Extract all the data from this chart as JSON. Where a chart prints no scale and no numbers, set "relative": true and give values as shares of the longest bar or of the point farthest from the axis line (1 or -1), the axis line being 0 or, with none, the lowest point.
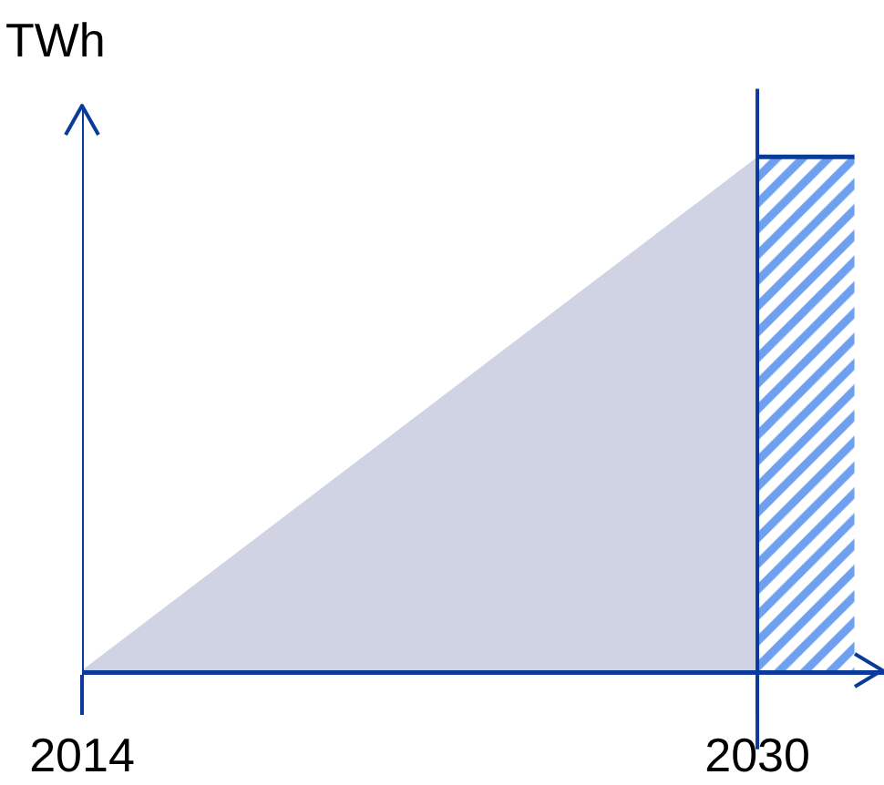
{
  "chart_data": {
    "type": "area",
    "relative": true,
    "ylabel": "TWh",
    "xlim": [
      2014,
      2033
    ],
    "xticks": [
      2014,
      2030
    ],
    "series": [
      {
        "color": "#d0d3e4",
        "x": [
          2014,
          2030
        ],
        "values": [
          0,
          1
        ]
      },
      {
        "color": "#6fa0f0",
        "x": [
          2030,
          2032.3
        ],
        "values": [
          1,
          1
        ]
      }
    ],
    "ref_lines": [
      {
        "axis": "x",
        "value": 2030
      }
    ]
  }
}
